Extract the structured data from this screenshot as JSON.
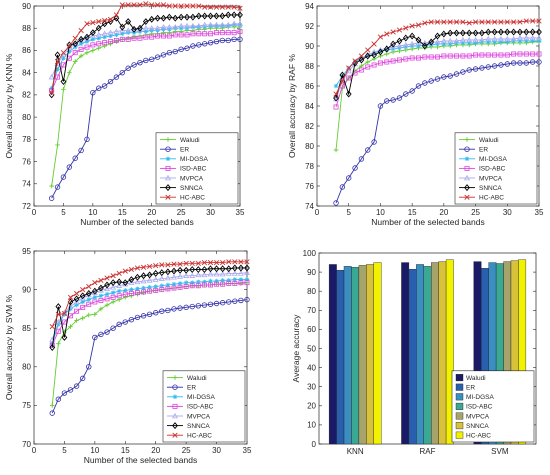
{
  "series_styles": [
    {
      "name": "Waludi",
      "color": "#66cc33",
      "marker": "plus"
    },
    {
      "name": "ER",
      "color": "#3333aa",
      "marker": "circle"
    },
    {
      "name": "MI-DGSA",
      "color": "#33bbee",
      "marker": "star"
    },
    {
      "name": "ISD-ABC",
      "color": "#dd44dd",
      "marker": "square"
    },
    {
      "name": "MVPCA",
      "color": "#a9a9ee",
      "marker": "triangle"
    },
    {
      "name": "SNNCA",
      "color": "#000000",
      "marker": "diamond"
    },
    {
      "name": "HC-ABC",
      "color": "#cc3333",
      "marker": "x"
    }
  ],
  "bar_colors": [
    "#1a1a66",
    "#2a5fb0",
    "#3a8fc0",
    "#3aa893",
    "#a6a46a",
    "#d8c23a",
    "#f2f200"
  ],
  "chart_data": [
    {
      "type": "line",
      "xlabel": "Number of the selected bands",
      "ylabel": "Overall accuracy by KNN %",
      "xlim": [
        0,
        35
      ],
      "ylim": [
        72,
        90
      ],
      "xticks": [
        0,
        5,
        10,
        15,
        20,
        25,
        30,
        35
      ],
      "yticks": [
        72,
        74,
        76,
        78,
        80,
        82,
        84,
        86,
        88,
        90
      ],
      "legend": "bottom-right",
      "grid": false,
      "x": [
        3,
        4,
        5,
        6,
        7,
        8,
        9,
        10,
        11,
        12,
        13,
        14,
        15,
        16,
        17,
        18,
        19,
        20,
        21,
        22,
        23,
        24,
        25,
        26,
        27,
        28,
        29,
        30,
        31,
        32,
        33,
        34,
        35
      ],
      "series": [
        {
          "name": "Waludi",
          "values": [
            73.8,
            77.5,
            82.5,
            84.0,
            85.0,
            85.5,
            85.8,
            86.0,
            86.2,
            86.4,
            86.6,
            86.8,
            87.0,
            87.1,
            87.2,
            87.3,
            87.4,
            87.5,
            87.5,
            87.6,
            87.6,
            87.7,
            87.7,
            87.8,
            87.8,
            87.9,
            87.9,
            88.0,
            88.0,
            88.0,
            88.1,
            88.1,
            88.1
          ]
        },
        {
          "name": "ER",
          "values": [
            72.7,
            73.7,
            74.6,
            75.5,
            76.3,
            77.0,
            78.0,
            82.2,
            82.6,
            82.8,
            83.2,
            83.6,
            84.0,
            84.4,
            84.7,
            84.9,
            85.1,
            85.2,
            85.4,
            85.6,
            85.8,
            85.9,
            86.1,
            86.2,
            86.4,
            86.5,
            86.6,
            86.7,
            86.8,
            86.9,
            86.9,
            87.0,
            87.0
          ]
        },
        {
          "name": "MI-DGSA",
          "values": [
            82.6,
            84.3,
            85.3,
            85.9,
            86.3,
            86.6,
            86.8,
            87.0,
            87.1,
            87.2,
            87.3,
            87.4,
            87.5,
            87.6,
            87.6,
            87.7,
            87.7,
            87.8,
            87.8,
            87.9,
            87.9,
            88.0,
            88.0,
            88.0,
            88.1,
            88.1,
            88.1,
            88.2,
            88.2,
            88.2,
            88.2,
            88.3,
            88.3
          ]
        },
        {
          "name": "ISD-ABC",
          "values": [
            82.4,
            83.6,
            84.7,
            85.3,
            85.8,
            86.1,
            86.3,
            86.5,
            86.6,
            86.7,
            86.8,
            86.9,
            87.0,
            87.0,
            87.1,
            87.1,
            87.2,
            87.2,
            87.3,
            87.3,
            87.3,
            87.4,
            87.4,
            87.4,
            87.5,
            87.5,
            87.5,
            87.5,
            87.6,
            87.6,
            87.6,
            87.6,
            87.7
          ]
        },
        {
          "name": "MVPCA",
          "values": [
            83.6,
            84.8,
            85.6,
            86.2,
            86.6,
            86.9,
            87.1,
            87.3,
            87.4,
            87.5,
            87.6,
            87.7,
            87.8,
            87.8,
            87.9,
            87.9,
            88.0,
            88.0,
            88.0,
            88.1,
            88.1,
            88.1,
            88.2,
            88.2,
            88.2,
            88.2,
            88.3,
            88.3,
            88.3,
            88.3,
            88.3,
            88.4,
            88.4
          ]
        },
        {
          "name": "SNNCA",
          "values": [
            82.0,
            85.6,
            83.2,
            86.5,
            86.6,
            87.0,
            87.2,
            87.6,
            88.0,
            88.4,
            88.6,
            88.9,
            88.1,
            88.6,
            87.9,
            88.0,
            88.6,
            88.8,
            88.9,
            88.9,
            89.0,
            88.9,
            89.0,
            89.0,
            89.0,
            89.1,
            89.1,
            89.1,
            89.1,
            89.1,
            89.2,
            89.2,
            89.2
          ]
        },
        {
          "name": "HC-ABC",
          "values": [
            82.2,
            85.0,
            85.8,
            86.4,
            87.1,
            87.8,
            88.4,
            88.5,
            88.6,
            88.7,
            88.8,
            89.2,
            90.1,
            90.1,
            90.1,
            90.1,
            90.2,
            90.1,
            90.1,
            90.1,
            90.0,
            90.0,
            90.0,
            90.0,
            90.0,
            90.0,
            89.9,
            89.9,
            89.9,
            89.9,
            89.9,
            89.9,
            89.8
          ]
        }
      ]
    },
    {
      "type": "line",
      "xlabel": "Number of the selected bands",
      "ylabel": "Overall accuracy by RAF %",
      "xlim": [
        0,
        35
      ],
      "ylim": [
        74,
        94
      ],
      "xticks": [
        0,
        5,
        10,
        15,
        20,
        25,
        30,
        35
      ],
      "yticks": [
        74,
        76,
        78,
        80,
        82,
        84,
        86,
        88,
        90,
        92,
        94
      ],
      "legend": "bottom-right",
      "grid": false,
      "x": [
        3,
        4,
        5,
        6,
        7,
        8,
        9,
        10,
        11,
        12,
        13,
        14,
        15,
        16,
        17,
        18,
        19,
        20,
        21,
        22,
        23,
        24,
        25,
        26,
        27,
        28,
        29,
        30,
        31,
        32,
        33,
        34,
        35
      ],
      "series": [
        {
          "name": "Waludi",
          "values": [
            79.6,
            85.8,
            86.8,
            87.5,
            88.0,
            88.4,
            88.7,
            89.0,
            89.2,
            89.4,
            89.5,
            89.6,
            89.7,
            89.8,
            89.8,
            89.9,
            89.9,
            90.0,
            90.0,
            90.1,
            90.1,
            90.1,
            90.2,
            90.2,
            90.2,
            90.2,
            90.3,
            90.3,
            90.3,
            90.3,
            90.3,
            90.4,
            90.4
          ]
        },
        {
          "name": "ER",
          "values": [
            74.3,
            75.9,
            76.8,
            77.8,
            78.7,
            79.6,
            80.4,
            84.0,
            84.5,
            84.6,
            84.8,
            85.2,
            85.5,
            86.0,
            86.3,
            86.5,
            86.7,
            86.9,
            87.0,
            87.2,
            87.4,
            87.6,
            87.7,
            87.8,
            87.9,
            88.0,
            88.1,
            88.2,
            88.3,
            88.3,
            88.3,
            88.4,
            88.4
          ]
        },
        {
          "name": "MI-DGSA",
          "values": [
            86.0,
            87.0,
            87.8,
            88.4,
            88.8,
            89.1,
            89.3,
            89.5,
            89.6,
            89.7,
            89.8,
            89.9,
            90.0,
            90.0,
            90.1,
            90.1,
            90.2,
            90.2,
            90.2,
            90.3,
            90.3,
            90.3,
            90.3,
            90.4,
            90.4,
            90.4,
            90.4,
            90.4,
            90.5,
            90.5,
            90.5,
            90.5,
            90.5
          ]
        },
        {
          "name": "ISD-ABC",
          "values": [
            83.9,
            86.0,
            86.8,
            87.3,
            87.6,
            87.9,
            88.1,
            88.3,
            88.4,
            88.5,
            88.6,
            88.7,
            88.8,
            88.8,
            88.9,
            88.9,
            88.9,
            89.0,
            89.0,
            89.0,
            89.0,
            89.0,
            89.1,
            89.1,
            89.1,
            89.1,
            89.1,
            89.1,
            89.2,
            89.2,
            89.2,
            89.2,
            89.2
          ]
        },
        {
          "name": "MVPCA",
          "values": [
            84.7,
            86.5,
            87.5,
            88.2,
            88.7,
            89.1,
            89.4,
            89.6,
            89.8,
            89.9,
            90.0,
            90.1,
            90.2,
            90.3,
            90.3,
            90.4,
            90.4,
            90.5,
            90.5,
            90.5,
            90.6,
            90.6,
            90.6,
            90.6,
            90.7,
            90.7,
            90.7,
            90.7,
            90.7,
            90.8,
            90.8,
            90.8,
            90.8
          ]
        },
        {
          "name": "SNNCA",
          "values": [
            84.8,
            87.1,
            85.2,
            88.3,
            88.6,
            89.0,
            89.1,
            89.4,
            89.7,
            90.2,
            90.5,
            90.8,
            91.0,
            90.6,
            90.0,
            90.4,
            91.0,
            91.2,
            91.3,
            91.3,
            91.3,
            91.3,
            91.3,
            91.3,
            91.4,
            91.4,
            91.4,
            91.4,
            91.4,
            91.4,
            91.4,
            91.4,
            91.4
          ]
        },
        {
          "name": "HC-ABC",
          "values": [
            85.2,
            86.5,
            87.8,
            88.5,
            89.0,
            89.6,
            90.2,
            90.9,
            91.2,
            91.4,
            91.6,
            91.8,
            92.0,
            92.1,
            92.3,
            92.4,
            92.4,
            92.4,
            92.4,
            92.4,
            92.4,
            92.3,
            92.4,
            92.4,
            92.4,
            92.4,
            92.4,
            92.4,
            92.4,
            92.4,
            92.5,
            92.5,
            92.5
          ]
        }
      ]
    },
    {
      "type": "line",
      "xlabel": "Number of the selected bands",
      "ylabel": "Overall accuracy by SVM %",
      "xlim": [
        0,
        35
      ],
      "ylim": [
        70,
        95
      ],
      "xticks": [
        0,
        5,
        10,
        15,
        20,
        25,
        30,
        35
      ],
      "yticks": [
        70,
        75,
        80,
        85,
        90,
        95
      ],
      "legend": "bottom-right",
      "grid": false,
      "x": [
        3,
        4,
        5,
        6,
        7,
        8,
        9,
        10,
        11,
        12,
        13,
        14,
        15,
        16,
        17,
        18,
        19,
        20,
        21,
        22,
        23,
        24,
        25,
        26,
        27,
        28,
        29,
        30,
        31,
        32,
        33,
        34,
        35
      ],
      "series": [
        {
          "name": "Waludi",
          "values": [
            75.0,
            83.0,
            84.5,
            85.2,
            86.0,
            86.3,
            86.7,
            86.8,
            87.5,
            88.0,
            88.4,
            88.7,
            89.0,
            89.2,
            89.4,
            89.6,
            89.8,
            89.9,
            90.0,
            90.1,
            90.2,
            90.3,
            90.4,
            90.5,
            90.5,
            90.6,
            90.6,
            90.7,
            90.7,
            90.8,
            90.8,
            90.8,
            90.9
          ]
        },
        {
          "name": "ER",
          "values": [
            74.0,
            75.8,
            76.6,
            77.0,
            77.5,
            78.5,
            80.0,
            83.8,
            84.2,
            84.5,
            85.0,
            85.5,
            85.8,
            86.1,
            86.4,
            86.6,
            86.8,
            87.0,
            87.2,
            87.3,
            87.5,
            87.6,
            87.7,
            87.8,
            87.9,
            88.0,
            88.1,
            88.2,
            88.3,
            88.4,
            88.5,
            88.6,
            88.7
          ]
        },
        {
          "name": "MI-DGSA",
          "values": [
            83.0,
            85.5,
            86.8,
            87.5,
            88.0,
            88.4,
            88.7,
            89.0,
            89.2,
            89.4,
            89.6,
            89.8,
            89.9,
            90.0,
            90.1,
            90.2,
            90.3,
            90.4,
            90.5,
            90.6,
            90.7,
            90.8,
            90.9,
            90.9,
            91.0,
            91.0,
            91.1,
            91.1,
            91.2,
            91.2,
            91.3,
            91.3,
            91.3
          ]
        },
        {
          "name": "ISD-ABC",
          "values": [
            82.8,
            84.6,
            85.8,
            86.6,
            87.2,
            87.7,
            88.1,
            88.4,
            88.6,
            88.8,
            89.0,
            89.2,
            89.4,
            89.5,
            89.6,
            89.7,
            89.8,
            89.9,
            90.0,
            90.1,
            90.2,
            90.3,
            90.4,
            90.5,
            90.5,
            90.6,
            90.6,
            90.7,
            90.7,
            90.8,
            90.8,
            90.9,
            90.9
          ]
        },
        {
          "name": "MVPCA",
          "values": [
            83.5,
            85.8,
            87.0,
            87.8,
            88.4,
            88.9,
            89.3,
            89.6,
            89.9,
            90.1,
            90.3,
            90.5,
            90.7,
            90.9,
            91.0,
            91.1,
            91.2,
            91.3,
            91.4,
            91.5,
            91.6,
            91.7,
            91.8,
            91.8,
            91.9,
            91.9,
            92.0,
            92.0,
            92.0,
            92.1,
            92.1,
            92.1,
            92.2
          ]
        },
        {
          "name": "SNNCA",
          "values": [
            82.5,
            87.8,
            83.8,
            88.4,
            88.8,
            89.2,
            89.5,
            89.8,
            90.2,
            90.6,
            90.9,
            91.0,
            90.9,
            91.3,
            91.6,
            91.8,
            91.9,
            92.1,
            92.2,
            92.3,
            92.4,
            92.5,
            92.5,
            92.6,
            92.6,
            92.6,
            92.7,
            92.7,
            92.7,
            92.7,
            92.8,
            92.8,
            92.8
          ]
        },
        {
          "name": "HC-ABC",
          "values": [
            85.2,
            86.8,
            86.9,
            89.0,
            89.5,
            90.0,
            90.4,
            90.9,
            91.2,
            91.5,
            91.8,
            92.1,
            92.4,
            92.6,
            92.8,
            92.9,
            93.0,
            93.1,
            93.2,
            93.2,
            93.3,
            93.3,
            93.4,
            93.4,
            93.4,
            93.5,
            93.5,
            93.5,
            93.5,
            93.6,
            93.6,
            93.6,
            93.6
          ]
        }
      ]
    },
    {
      "type": "bar",
      "xlabel": "",
      "ylabel": "Average accuracy",
      "ylim": [
        0,
        100
      ],
      "yticks": [
        0,
        10,
        20,
        30,
        40,
        50,
        60,
        70,
        80,
        90,
        100
      ],
      "categories": [
        "KNN",
        "RAF",
        "SVM"
      ],
      "legend": "bottom-right",
      "grid": false,
      "series": [
        {
          "name": "Waludi",
          "values": [
            94.0,
            95.0,
            95.5
          ]
        },
        {
          "name": "ER",
          "values": [
            91.0,
            91.5,
            92.0
          ]
        },
        {
          "name": "MI-DGSA",
          "values": [
            93.0,
            94.0,
            95.0
          ]
        },
        {
          "name": "ISD-ABC",
          "values": [
            92.5,
            93.0,
            94.5
          ]
        },
        {
          "name": "MVPCA",
          "values": [
            93.5,
            95.0,
            95.5
          ]
        },
        {
          "name": "SNNCA",
          "values": [
            94.0,
            95.5,
            96.0
          ]
        },
        {
          "name": "HC-ABC",
          "values": [
            95.0,
            96.5,
            96.5
          ]
        }
      ]
    }
  ]
}
